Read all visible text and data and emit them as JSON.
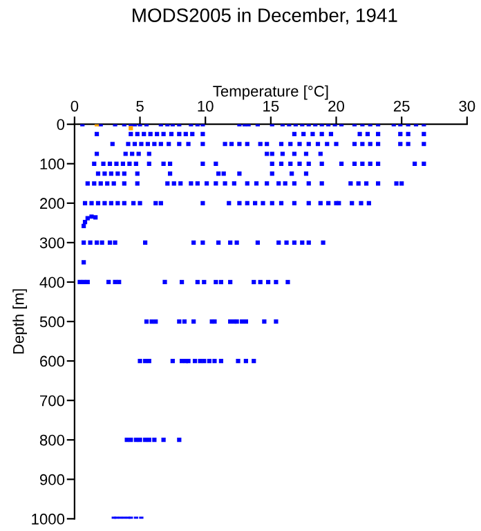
{
  "chart_data": {
    "type": "scatter",
    "title": "MODS2005 in December, 1941",
    "xlabel": "Temperature [°C]",
    "ylabel": "Depth [m]",
    "xlim": [
      0,
      30
    ],
    "xticks": [
      0,
      5,
      10,
      15,
      20,
      25,
      30
    ],
    "ylim": [
      1000,
      0
    ],
    "yticks": [
      0,
      100,
      200,
      300,
      400,
      500,
      600,
      700,
      800,
      900,
      1000
    ],
    "grid": false,
    "legend": false,
    "marker": "square",
    "series": [
      {
        "color": "#0000ff",
        "x": [
          0.6,
          2.0,
          3.1,
          3.8,
          4.3,
          4.6,
          5.0,
          5.5,
          6.6,
          7.1,
          7.5,
          8.0,
          8.9,
          9.4,
          9.8,
          12.6,
          13.0,
          13.3,
          14.0,
          15.1,
          15.9,
          16.4,
          16.9,
          17.4,
          17.9,
          18.4,
          18.9,
          19.4,
          19.9,
          20.4,
          21.4,
          22.0,
          22.6,
          23.2,
          24.4,
          24.9,
          25.5,
          26.1,
          26.7,
          1.7,
          4.3,
          4.8,
          5.3,
          5.8,
          6.3,
          6.8,
          7.4,
          8.0,
          8.5,
          9.0,
          9.8,
          16.8,
          17.5,
          18.2,
          18.9,
          19.6,
          21.8,
          22.4,
          23.2,
          24.9,
          25.5,
          26.7,
          2.9,
          4.1,
          4.6,
          5.1,
          5.6,
          6.1,
          6.6,
          7.2,
          8.0,
          8.7,
          9.8,
          11.5,
          12.0,
          12.6,
          13.2,
          14.2,
          14.7,
          15.8,
          16.5,
          17.2,
          17.9,
          18.6,
          19.3,
          20.0,
          21.4,
          22.0,
          22.6,
          23.2,
          24.9,
          25.5,
          26.7,
          1.7,
          3.9,
          4.4,
          4.9,
          5.7,
          14.7,
          15.1,
          15.9,
          16.8,
          17.7,
          18.8,
          1.5,
          2.2,
          2.7,
          3.2,
          3.7,
          4.2,
          4.7,
          5.7,
          6.8,
          7.3,
          9.8,
          10.8,
          15.1,
          15.8,
          16.5,
          17.2,
          17.9,
          18.9,
          20.4,
          21.4,
          22.0,
          22.6,
          23.2,
          26.0,
          26.7,
          1.8,
          2.3,
          2.8,
          3.3,
          3.8,
          4.8,
          7.3,
          11.0,
          11.4,
          12.6,
          15.1,
          16.6,
          17.7,
          1.0,
          1.5,
          2.0,
          2.5,
          3.0,
          3.8,
          4.8,
          7.1,
          7.6,
          8.1,
          8.9,
          9.4,
          10.1,
          10.8,
          11.5,
          12.2,
          13.2,
          13.9,
          14.7,
          15.6,
          16.1,
          16.8,
          17.9,
          18.9,
          21.1,
          21.7,
          22.3,
          23.2,
          24.6,
          25.0,
          0.8,
          1.3,
          1.8,
          2.3,
          2.8,
          3.3,
          3.8,
          4.5,
          5.0,
          6.2,
          6.6,
          9.8,
          11.8,
          12.6,
          13.2,
          13.8,
          14.4,
          15.1,
          15.8,
          16.8,
          17.9,
          18.8,
          19.4,
          20.0,
          20.2,
          21.2,
          21.9,
          22.5,
          0.7,
          0.8,
          1.0,
          1.3,
          1.6,
          0.7,
          1.2,
          1.7,
          2.1,
          2.7,
          3.1,
          5.4,
          9.1,
          9.8,
          11.0,
          11.9,
          12.4,
          14.0,
          15.6,
          16.2,
          16.8,
          17.4,
          17.9,
          19.0,
          0.7,
          0.4,
          0.7,
          1.0,
          2.6,
          3.1,
          3.4,
          6.9,
          8.2,
          9.4,
          9.9,
          10.8,
          11.2,
          11.9,
          13.7,
          14.2,
          14.8,
          15.4,
          16.3,
          5.5,
          5.9,
          6.2,
          8.0,
          8.4,
          9.1,
          10.5,
          10.7,
          11.9,
          12.2,
          12.4,
          12.8,
          13.1,
          14.5,
          15.4,
          5.0,
          5.4,
          5.7,
          7.5,
          8.2,
          8.5,
          8.7,
          9.2,
          9.6,
          9.9,
          10.3,
          10.7,
          11.2,
          12.5,
          13.1,
          13.7,
          4.0,
          4.3,
          4.7,
          5.0,
          5.4,
          5.7,
          6.1,
          6.8,
          8.0,
          3.0,
          3.2,
          3.5,
          3.8,
          4.1,
          4.3,
          4.7,
          5.1
        ],
        "values": [
          0,
          0,
          0,
          0,
          0,
          0,
          0,
          0,
          0,
          0,
          0,
          0,
          0,
          0,
          0,
          0,
          0,
          0,
          0,
          0,
          0,
          0,
          0,
          0,
          0,
          0,
          0,
          0,
          0,
          0,
          0,
          0,
          0,
          0,
          0,
          0,
          0,
          0,
          0,
          25,
          25,
          25,
          25,
          25,
          25,
          25,
          25,
          25,
          25,
          25,
          25,
          25,
          25,
          25,
          25,
          25,
          25,
          25,
          25,
          25,
          25,
          25,
          50,
          50,
          50,
          50,
          50,
          50,
          50,
          50,
          50,
          50,
          50,
          50,
          50,
          50,
          50,
          50,
          50,
          50,
          50,
          50,
          50,
          50,
          50,
          50,
          50,
          50,
          50,
          50,
          50,
          50,
          50,
          75,
          75,
          75,
          75,
          75,
          75,
          75,
          75,
          75,
          75,
          75,
          100,
          100,
          100,
          100,
          100,
          100,
          100,
          100,
          100,
          100,
          100,
          100,
          100,
          100,
          100,
          100,
          100,
          100,
          100,
          100,
          100,
          100,
          100,
          100,
          100,
          125,
          125,
          125,
          125,
          125,
          125,
          125,
          125,
          125,
          125,
          125,
          125,
          125,
          150,
          150,
          150,
          150,
          150,
          150,
          150,
          150,
          150,
          150,
          150,
          150,
          150,
          150,
          150,
          150,
          150,
          150,
          150,
          150,
          150,
          150,
          150,
          150,
          150,
          150,
          150,
          150,
          150,
          150,
          200,
          200,
          200,
          200,
          200,
          200,
          200,
          200,
          200,
          200,
          200,
          200,
          200,
          200,
          200,
          200,
          200,
          200,
          200,
          200,
          200,
          200,
          200,
          200,
          200,
          200,
          200,
          200,
          258,
          248,
          238,
          234,
          236,
          300,
          300,
          300,
          300,
          300,
          300,
          300,
          300,
          300,
          300,
          300,
          300,
          300,
          300,
          300,
          300,
          300,
          300,
          300,
          350,
          400,
          400,
          400,
          400,
          400,
          400,
          400,
          400,
          400,
          400,
          400,
          400,
          400,
          400,
          400,
          400,
          400,
          400,
          500,
          500,
          500,
          500,
          500,
          500,
          500,
          500,
          500,
          500,
          500,
          500,
          500,
          500,
          500,
          600,
          600,
          600,
          600,
          600,
          600,
          600,
          600,
          600,
          600,
          600,
          600,
          600,
          600,
          600,
          600,
          800,
          800,
          800,
          800,
          800,
          800,
          800,
          800,
          800,
          1000,
          1000,
          1000,
          1000,
          1000,
          1000,
          1000,
          1000
        ]
      },
      {
        "color": "#ffa500",
        "x": [
          1.7,
          4.3
        ],
        "values": [
          0,
          10
        ]
      }
    ]
  }
}
